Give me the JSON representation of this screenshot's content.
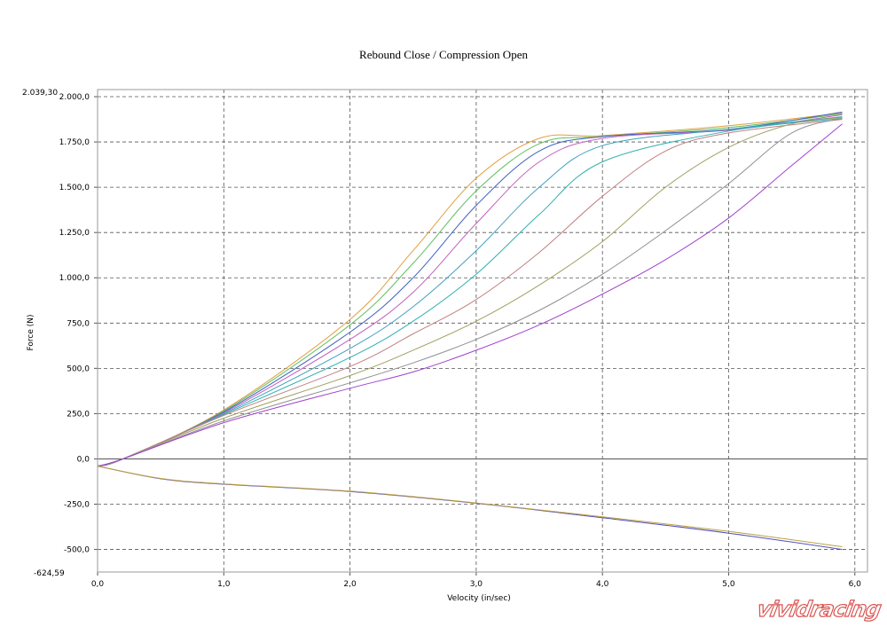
{
  "chart_data": {
    "type": "line",
    "title": "Rebound Close / Compression Open",
    "xlabel": "Velocity (in/sec)",
    "ylabel": "Force (N)",
    "xlim": [
      0,
      6.1
    ],
    "ylim": [
      -624.59,
      2039.3
    ],
    "x_ticks": [
      "0,0",
      "1,0",
      "2,0",
      "3,0",
      "4,0",
      "5,0",
      "6,0"
    ],
    "y_ticks": [
      "-500,0",
      "-250,0",
      "0,0",
      "250,0",
      "500,0",
      "750,0",
      "1.000,0",
      "1.250,0",
      "1.500,0",
      "1.750,0",
      "2.000,0"
    ],
    "y_max_label": "2.039,30",
    "y_min_label": "-624,59",
    "grid": true,
    "watermark": "vividracing",
    "series": [
      {
        "color": "#e0a040",
        "points": [
          [
            0,
            -40
          ],
          [
            0.2,
            0
          ],
          [
            1,
            270
          ],
          [
            2,
            770
          ],
          [
            2.5,
            1150
          ],
          [
            3,
            1550
          ],
          [
            3.5,
            1770
          ],
          [
            4,
            1785
          ],
          [
            5,
            1840
          ],
          [
            5.9,
            1910
          ]
        ]
      },
      {
        "color": "#60c060",
        "points": [
          [
            0,
            -40
          ],
          [
            0.2,
            0
          ],
          [
            1,
            265
          ],
          [
            2,
            740
          ],
          [
            2.5,
            1080
          ],
          [
            3,
            1480
          ],
          [
            3.5,
            1740
          ],
          [
            4,
            1780
          ],
          [
            5,
            1830
          ],
          [
            5.9,
            1905
          ]
        ]
      },
      {
        "color": "#4060c0",
        "points": [
          [
            0,
            -40
          ],
          [
            0.2,
            0
          ],
          [
            1,
            260
          ],
          [
            2,
            700
          ],
          [
            2.5,
            1000
          ],
          [
            3,
            1400
          ],
          [
            3.5,
            1700
          ],
          [
            4,
            1780
          ],
          [
            5,
            1820
          ],
          [
            5.9,
            1915
          ]
        ]
      },
      {
        "color": "#c060c0",
        "points": [
          [
            0,
            -40
          ],
          [
            0.2,
            0
          ],
          [
            1,
            255
          ],
          [
            2,
            660
          ],
          [
            2.5,
            920
          ],
          [
            3,
            1300
          ],
          [
            3.5,
            1640
          ],
          [
            4,
            1770
          ],
          [
            5,
            1815
          ],
          [
            5.9,
            1900
          ]
        ]
      },
      {
        "color": "#40a0c0",
        "points": [
          [
            0,
            -40
          ],
          [
            0.2,
            0
          ],
          [
            1,
            250
          ],
          [
            2,
            610
          ],
          [
            2.5,
            840
          ],
          [
            3,
            1150
          ],
          [
            3.5,
            1500
          ],
          [
            4,
            1730
          ],
          [
            5,
            1820
          ],
          [
            5.9,
            1890
          ]
        ]
      },
      {
        "color": "#30b0b0",
        "points": [
          [
            0,
            -40
          ],
          [
            0.2,
            0
          ],
          [
            1,
            245
          ],
          [
            2,
            560
          ],
          [
            2.5,
            760
          ],
          [
            3,
            1020
          ],
          [
            3.5,
            1350
          ],
          [
            4,
            1640
          ],
          [
            5,
            1810
          ],
          [
            5.9,
            1880
          ]
        ]
      },
      {
        "color": "#c08080",
        "points": [
          [
            0,
            -40
          ],
          [
            0.2,
            0
          ],
          [
            1,
            240
          ],
          [
            2,
            510
          ],
          [
            2.5,
            690
          ],
          [
            3,
            880
          ],
          [
            3.5,
            1140
          ],
          [
            4,
            1450
          ],
          [
            4.5,
            1700
          ],
          [
            5,
            1800
          ],
          [
            5.9,
            1875
          ]
        ]
      },
      {
        "color": "#a0a060",
        "points": [
          [
            0,
            -40
          ],
          [
            0.2,
            0
          ],
          [
            1,
            225
          ],
          [
            2,
            460
          ],
          [
            2.5,
            600
          ],
          [
            3,
            760
          ],
          [
            3.5,
            960
          ],
          [
            4,
            1200
          ],
          [
            4.5,
            1500
          ],
          [
            5,
            1720
          ],
          [
            5.5,
            1850
          ],
          [
            5.9,
            1885
          ]
        ]
      },
      {
        "color": "#909090",
        "points": [
          [
            0,
            -40
          ],
          [
            0.2,
            0
          ],
          [
            1,
            210
          ],
          [
            2,
            420
          ],
          [
            2.5,
            530
          ],
          [
            3,
            660
          ],
          [
            3.5,
            820
          ],
          [
            4,
            1020
          ],
          [
            4.5,
            1260
          ],
          [
            5,
            1520
          ],
          [
            5.5,
            1800
          ],
          [
            5.9,
            1880
          ]
        ]
      },
      {
        "color": "#a040d0",
        "points": [
          [
            0,
            -40
          ],
          [
            0.2,
            0
          ],
          [
            1,
            200
          ],
          [
            2,
            390
          ],
          [
            2.5,
            480
          ],
          [
            3,
            600
          ],
          [
            3.5,
            740
          ],
          [
            4,
            910
          ],
          [
            4.5,
            1100
          ],
          [
            5,
            1330
          ],
          [
            5.5,
            1620
          ],
          [
            5.9,
            1850
          ]
        ]
      },
      {
        "color": "#5050c0",
        "points": [
          [
            0,
            -40
          ],
          [
            0.5,
            -110
          ],
          [
            1,
            -140
          ],
          [
            2,
            -180
          ],
          [
            3,
            -245
          ],
          [
            4,
            -325
          ],
          [
            5,
            -410
          ],
          [
            5.9,
            -500
          ]
        ]
      },
      {
        "color": "#c0a040",
        "points": [
          [
            0,
            -40
          ],
          [
            0.5,
            -108
          ],
          [
            1,
            -138
          ],
          [
            2,
            -178
          ],
          [
            3,
            -243
          ],
          [
            4,
            -320
          ],
          [
            5,
            -400
          ],
          [
            5.9,
            -485
          ]
        ]
      }
    ]
  }
}
